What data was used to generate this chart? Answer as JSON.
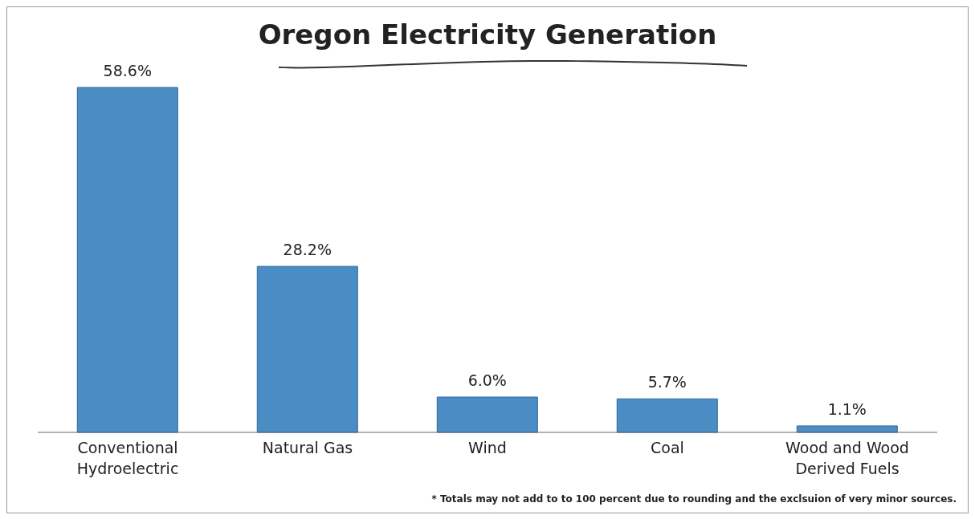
{
  "chart_data": {
    "type": "bar",
    "title": "Oregon Electricity Generation",
    "categories": [
      "Conventional Hydroelectric",
      "Natural Gas",
      "Wind",
      "Coal",
      "Wood and Wood Derived Fuels"
    ],
    "values": [
      58.6,
      28.2,
      6.0,
      5.7,
      1.1
    ],
    "value_labels": [
      "58.6%",
      "28.2%",
      "6.0%",
      "5.7%",
      "1.1%"
    ],
    "color": "#4a8cc4",
    "annotations": [
      "* Totals may not add to to 100 percent due to rounding and the exclsuion of very minor sources."
    ]
  }
}
